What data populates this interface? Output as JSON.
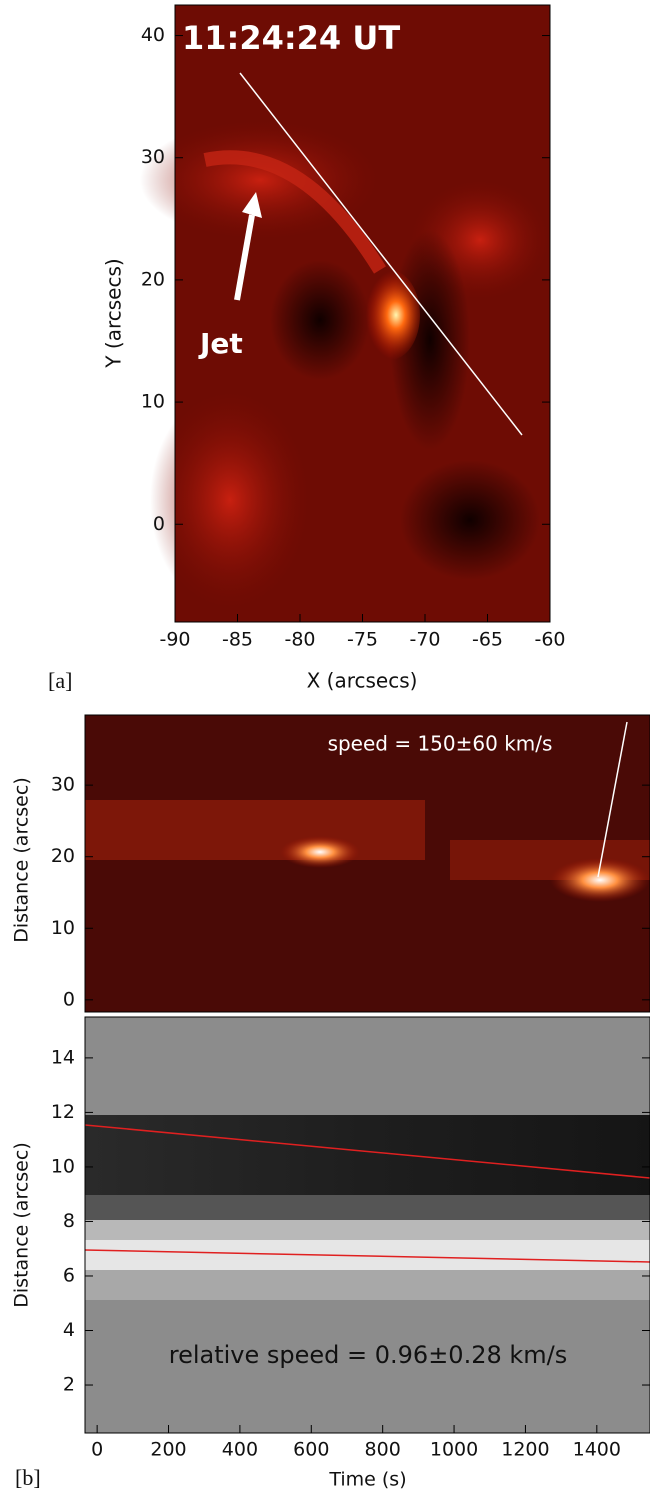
{
  "panel_a": {
    "label": "[a]",
    "timestamp": "11:24:24 UT",
    "annotation": "Jet",
    "xlabel": "X (arcsecs)",
    "ylabel": "Y (arcsecs)",
    "xlim": [
      -90,
      -60
    ],
    "ylim": [
      -8,
      42.5
    ],
    "xticks": [
      -90,
      -85,
      -80,
      -75,
      -70,
      -65,
      -60
    ],
    "yticks": [
      0,
      10,
      20,
      30,
      40
    ]
  },
  "panel_b": {
    "label": "[b]",
    "xlabel": "Time (s)",
    "xlim": [
      -34,
      1549
    ],
    "xticks": [
      0,
      200,
      400,
      600,
      800,
      1000,
      1200,
      1400
    ],
    "top": {
      "ylabel": "Distance (arcsec)",
      "annotation": "speed = 150±60 km/s",
      "ylim": [
        -1.7,
        39.8
      ],
      "yticks": [
        0,
        10,
        20,
        30
      ]
    },
    "bottom": {
      "ylabel": "Distance (arcsec)",
      "annotation": "relative speed = 0.96±0.28 km/s",
      "ylim": [
        0.24,
        15.5
      ],
      "yticks": [
        2,
        4,
        6,
        8,
        10,
        12,
        14
      ]
    }
  }
}
